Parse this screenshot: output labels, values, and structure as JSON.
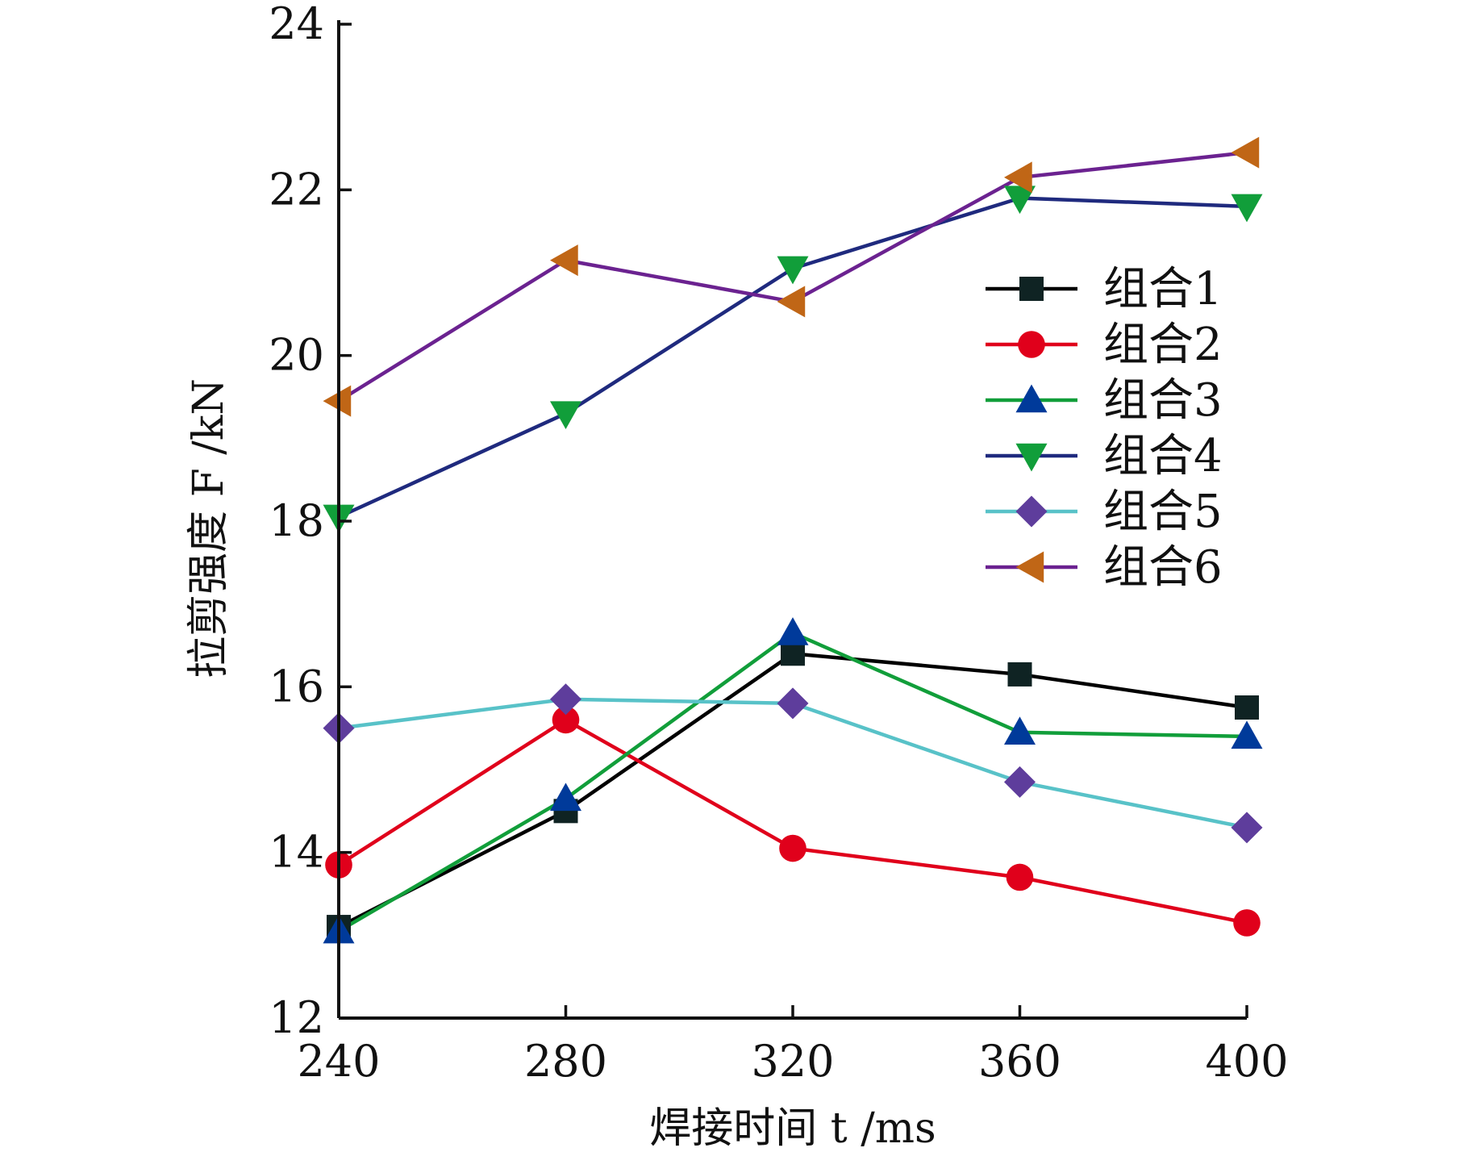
{
  "chart_data": {
    "type": "line",
    "title": "",
    "xlabel": "焊接时间 t /ms",
    "ylabel": "拉剪强度 F /kN",
    "x": [
      240,
      280,
      320,
      360,
      400
    ],
    "xlim": [
      240,
      400
    ],
    "ylim": [
      12,
      24
    ],
    "xticks": [
      "240",
      "280",
      "320",
      "360",
      "400"
    ],
    "yticks": [
      "12",
      "14",
      "16",
      "18",
      "20",
      "22",
      "24"
    ],
    "grid": false,
    "legend_position": "right",
    "series": [
      {
        "name": "组合1",
        "color": "#000000",
        "marker": "square",
        "markerColor": "#0f2323",
        "values": [
          13.1,
          14.5,
          16.4,
          16.15,
          15.75
        ]
      },
      {
        "name": "组合2",
        "color": "#e0001b",
        "marker": "circle",
        "markerColor": "#e0001b",
        "values": [
          13.85,
          15.6,
          14.05,
          13.7,
          13.15
        ]
      },
      {
        "name": "组合3",
        "color": "#119e3a",
        "marker": "triangle-up",
        "markerColor": "#003a9a",
        "values": [
          13.05,
          14.65,
          16.65,
          15.45,
          15.4
        ]
      },
      {
        "name": "组合4",
        "color": "#1f2a7e",
        "marker": "triangle-down",
        "markerColor": "#119e3a",
        "values": [
          18.05,
          19.3,
          21.05,
          21.9,
          21.8
        ]
      },
      {
        "name": "组合5",
        "color": "#58c2c8",
        "marker": "diamond",
        "markerColor": "#5e3d9c",
        "values": [
          15.5,
          15.85,
          15.8,
          14.85,
          14.3
        ]
      },
      {
        "name": "组合6",
        "color": "#6b2290",
        "marker": "triangle-left",
        "markerColor": "#c06616",
        "values": [
          19.45,
          21.15,
          20.65,
          22.15,
          22.45
        ]
      }
    ]
  }
}
